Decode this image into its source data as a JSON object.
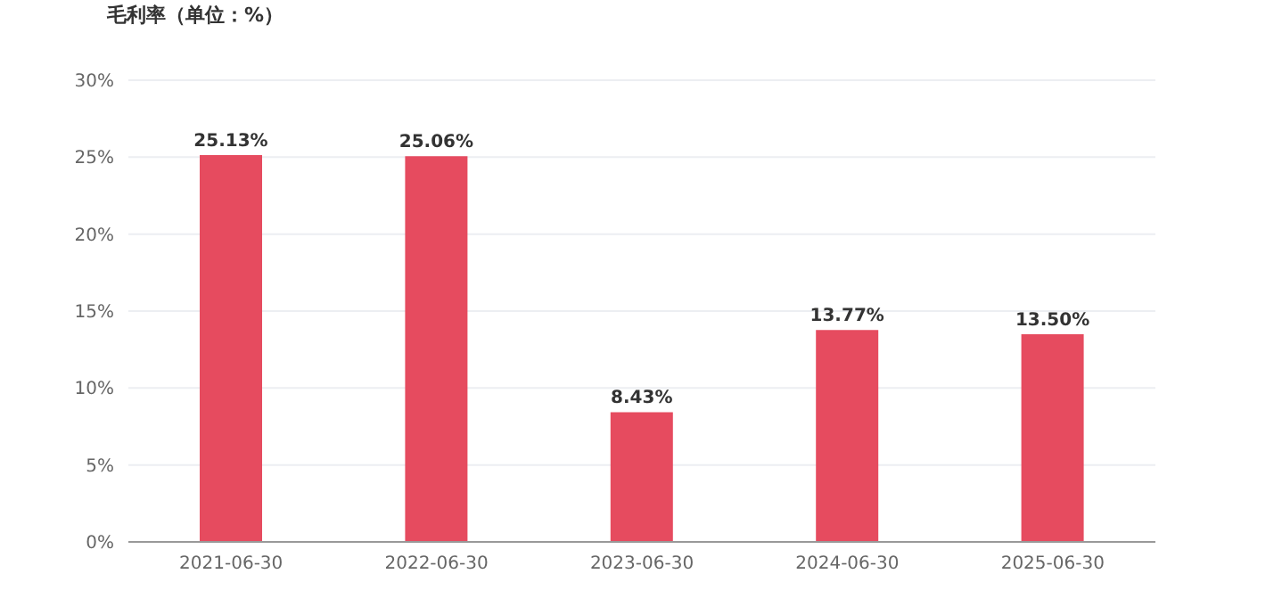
{
  "chart_data": {
    "type": "bar",
    "title": "毛利率（单位：%）",
    "categories": [
      "2021-06-30",
      "2022-06-30",
      "2023-06-30",
      "2024-06-30",
      "2025-06-30"
    ],
    "values": [
      25.13,
      25.06,
      8.43,
      13.77,
      13.5
    ],
    "value_labels": [
      "25.13%",
      "25.06%",
      "8.43%",
      "13.77%",
      "13.50%"
    ],
    "color": "#e64b5f",
    "ylim": [
      0,
      30
    ],
    "yticks": [
      {
        "value": 0,
        "label": "0%"
      },
      {
        "value": 5,
        "label": "5%"
      },
      {
        "value": 10,
        "label": "10%"
      },
      {
        "value": 15,
        "label": "15%"
      },
      {
        "value": 20,
        "label": "20%"
      },
      {
        "value": 25,
        "label": "25%"
      },
      {
        "value": 30,
        "label": "30%"
      }
    ],
    "grid": "y",
    "legend": false
  }
}
